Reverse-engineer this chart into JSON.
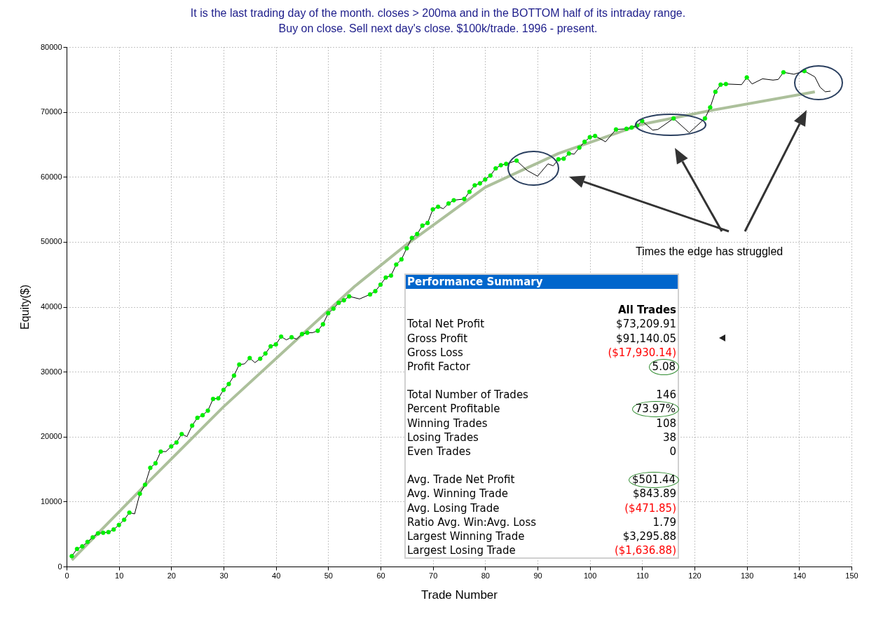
{
  "chart_data": {
    "type": "line",
    "title": "It is the last trading day of the month. closes > 200ma and in the BOTTOM half of its intraday range.",
    "subtitle": "Buy on close. Sell next day's close. $100k/trade. 1996 - present.",
    "xlabel": "Trade Number",
    "ylabel": "Equity($)",
    "xlim": [
      0,
      150
    ],
    "xticks": [
      0,
      10,
      20,
      30,
      40,
      50,
      60,
      70,
      80,
      90,
      100,
      110,
      120,
      130,
      140,
      150
    ],
    "ylim": [
      0,
      80000
    ],
    "yticks": [
      0,
      10000,
      20000,
      30000,
      40000,
      50000,
      60000,
      70000,
      80000
    ],
    "grid": true,
    "series": [
      {
        "type": "line",
        "color": "#9db58a",
        "x": [
          1,
          15,
          30,
          55,
          65,
          80,
          94,
          110,
          123,
          143
        ],
        "values": [
          1000,
          12500,
          24600,
          43100,
          49600,
          58400,
          63600,
          68100,
          70200,
          73100
        ]
      },
      {
        "color": "#000000",
        "x": [
          1,
          2,
          3,
          4,
          5,
          6,
          7,
          8,
          9,
          10,
          11,
          12,
          13,
          14,
          15,
          16,
          17,
          18,
          19,
          20,
          21,
          22,
          23,
          24,
          25,
          26,
          27,
          28,
          29,
          30,
          31,
          32,
          33,
          34,
          35,
          36,
          37,
          38,
          39,
          40,
          41,
          42,
          43,
          44,
          45,
          46,
          47,
          48,
          49,
          50,
          51,
          52,
          53,
          54,
          56,
          58,
          59,
          60,
          61,
          62,
          63,
          64,
          65,
          66,
          67,
          68,
          69,
          70,
          71,
          72,
          73,
          74,
          76,
          77,
          78,
          79,
          80,
          81,
          82,
          83,
          84,
          86,
          88,
          90,
          92,
          93,
          94,
          95,
          96,
          97,
          98,
          99,
          100,
          101,
          103,
          105,
          107,
          108,
          109,
          110,
          112,
          113,
          116,
          119,
          122,
          123,
          124,
          125,
          126,
          129,
          130,
          131,
          133,
          135,
          136,
          137,
          139,
          141,
          143,
          144,
          145,
          146
        ],
        "values": [
          1600,
          2700,
          3100,
          3800,
          4500,
          5100,
          5200,
          5300,
          5700,
          6400,
          7200,
          8300,
          8100,
          11200,
          12600,
          15200,
          15900,
          17700,
          17700,
          18500,
          19100,
          20400,
          20000,
          21700,
          22900,
          23300,
          24000,
          25800,
          25900,
          27200,
          28100,
          29400,
          31100,
          31200,
          32100,
          31400,
          32000,
          32800,
          33900,
          34200,
          35400,
          34900,
          35300,
          35000,
          35800,
          36000,
          36000,
          36300,
          37300,
          39000,
          39700,
          40600,
          41000,
          41600,
          41200,
          41900,
          42400,
          43400,
          44500,
          44800,
          46500,
          47300,
          49000,
          50600,
          51200,
          52500,
          52900,
          55000,
          55400,
          55100,
          55900,
          56400,
          56600,
          57700,
          58700,
          59000,
          59600,
          60200,
          61300,
          61800,
          62000,
          62500,
          61000,
          60100,
          62000,
          61700,
          62700,
          62800,
          63600,
          63500,
          64500,
          65400,
          66100,
          66300,
          65400,
          67300,
          67400,
          67600,
          67900,
          68600,
          67200,
          67300,
          69000,
          66800,
          69000,
          70700,
          73100,
          74200,
          74300,
          74200,
          75300,
          74300,
          75100,
          74900,
          75000,
          76100,
          75800,
          76300,
          75400,
          73800,
          73100,
          73200
        ]
      },
      {
        "type": "scatter",
        "marker": "circle",
        "color": "#00ee00",
        "x": [
          1,
          2,
          3,
          4,
          5,
          6,
          7,
          8,
          9,
          10,
          11,
          12,
          14,
          15,
          16,
          17,
          18,
          20,
          21,
          22,
          24,
          25,
          26,
          27,
          28,
          29,
          30,
          31,
          32,
          33,
          35,
          37,
          38,
          39,
          40,
          41,
          43,
          45,
          46,
          48,
          49,
          50,
          51,
          52,
          53,
          54,
          58,
          59,
          60,
          61,
          62,
          63,
          64,
          65,
          66,
          67,
          68,
          69,
          70,
          71,
          73,
          74,
          76,
          77,
          78,
          79,
          80,
          81,
          82,
          83,
          84,
          86,
          94,
          95,
          96,
          98,
          99,
          100,
          101,
          105,
          107,
          108,
          109,
          110,
          116,
          122,
          123,
          124,
          125,
          126,
          130,
          137,
          141
        ],
        "values": [
          1600,
          2700,
          3100,
          3800,
          4500,
          5100,
          5200,
          5300,
          5700,
          6400,
          7200,
          8300,
          11200,
          12600,
          15200,
          15900,
          17700,
          18500,
          19100,
          20400,
          21700,
          22900,
          23300,
          24000,
          25800,
          25900,
          27200,
          28100,
          29400,
          31100,
          32100,
          32000,
          32800,
          33900,
          34200,
          35400,
          35300,
          35800,
          36000,
          36300,
          37300,
          39000,
          39700,
          40600,
          41000,
          41600,
          41900,
          42400,
          43400,
          44500,
          44800,
          46500,
          47300,
          49000,
          50600,
          51200,
          52500,
          52900,
          55000,
          55400,
          55900,
          56400,
          56600,
          57700,
          58700,
          59000,
          59600,
          60200,
          61300,
          61800,
          62000,
          62500,
          62700,
          62800,
          63600,
          64500,
          65400,
          66100,
          66300,
          67300,
          67400,
          67600,
          67900,
          68600,
          69000,
          69000,
          70700,
          73100,
          74200,
          74300,
          75300,
          76100,
          76300
        ]
      }
    ],
    "annotations": [
      "Times the edge has struggled",
      "Performance Summary",
      "All Trades",
      "Total Net Profit",
      "$73,209.91",
      "Gross Profit",
      "$91,140.05",
      "Gross Loss",
      "($17,930.14)",
      "Profit Factor",
      "5.08",
      "Total Number of Trades",
      "146",
      "Percent Profitable",
      "73.97%",
      "Winning Trades",
      "108",
      "Losing Trades",
      "38",
      "Even Trades",
      "0",
      "Avg. Trade Net Profit",
      "$501.44",
      "Avg. Winning Trade",
      "$843.89",
      "Avg. Losing Trade",
      "($471.85)",
      "Ratio Avg. Win:Avg. Loss",
      "1.79",
      "Largest Winning Trade",
      "$3,295.88",
      "Largest Losing Trade",
      "($1,636.88)"
    ]
  }
}
